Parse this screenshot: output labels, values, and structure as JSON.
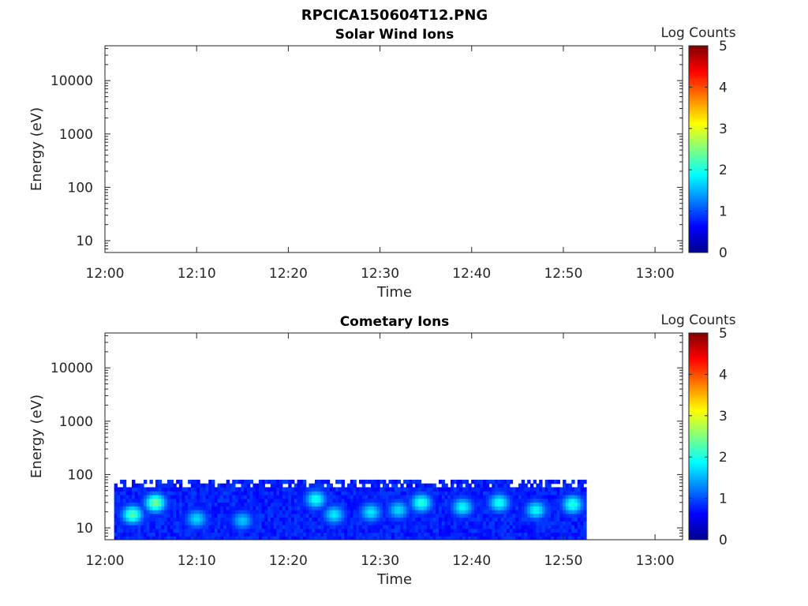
{
  "figure_title": "RPCICA150604T12.PNG",
  "chart_data": [
    {
      "type": "heatmap",
      "title": "Solar Wind Ions",
      "xlabel": "Time",
      "ylabel": "Energy (eV)",
      "y_scale": "log",
      "xlim": [
        "12:00",
        "13:03"
      ],
      "ylim": [
        6,
        45000
      ],
      "xticks": [
        "12:00",
        "12:10",
        "12:20",
        "12:30",
        "12:40",
        "12:50",
        "13:00"
      ],
      "yticks": [
        "10",
        "100",
        "1000",
        "10000"
      ],
      "colorbar": {
        "label": "Log Counts",
        "range": [
          0,
          5
        ],
        "ticks": [
          "0",
          "1",
          "2",
          "3",
          "4",
          "5"
        ],
        "colormap": "jet"
      },
      "data_present": false,
      "time_range": null,
      "energy_range": null,
      "features": []
    },
    {
      "type": "heatmap",
      "title": "Cometary Ions",
      "xlabel": "Time",
      "ylabel": "Energy (eV)",
      "y_scale": "log",
      "xlim": [
        "12:00",
        "13:03"
      ],
      "ylim": [
        6,
        45000
      ],
      "xticks": [
        "12:00",
        "12:10",
        "12:20",
        "12:30",
        "12:40",
        "12:50",
        "13:00"
      ],
      "yticks": [
        "10",
        "100",
        "1000",
        "10000"
      ],
      "colorbar": {
        "label": "Log Counts",
        "range": [
          0,
          5
        ],
        "ticks": [
          "0",
          "1",
          "2",
          "3",
          "4",
          "5"
        ],
        "colormap": "jet"
      },
      "data_present": true,
      "time_range": [
        "12:01",
        "12:52.5"
      ],
      "energy_range": [
        6,
        80
      ],
      "background_log_counts": 0.6,
      "features": [
        {
          "time": "12:03",
          "energy": 18,
          "log_counts": 2.3
        },
        {
          "time": "12:05.5",
          "energy": 30,
          "log_counts": 2.5
        },
        {
          "time": "12:10",
          "energy": 15,
          "log_counts": 1.7
        },
        {
          "time": "12:15",
          "energy": 14,
          "log_counts": 1.6
        },
        {
          "time": "12:23",
          "energy": 35,
          "log_counts": 2.0
        },
        {
          "time": "12:25",
          "energy": 18,
          "log_counts": 1.8
        },
        {
          "time": "12:29",
          "energy": 20,
          "log_counts": 1.8
        },
        {
          "time": "12:32",
          "energy": 22,
          "log_counts": 1.7
        },
        {
          "time": "12:34.5",
          "energy": 30,
          "log_counts": 2.1
        },
        {
          "time": "12:39",
          "energy": 25,
          "log_counts": 1.9
        },
        {
          "time": "12:43",
          "energy": 30,
          "log_counts": 2.0
        },
        {
          "time": "12:47",
          "energy": 22,
          "log_counts": 1.9
        },
        {
          "time": "12:51",
          "energy": 28,
          "log_counts": 2.1
        }
      ]
    }
  ]
}
